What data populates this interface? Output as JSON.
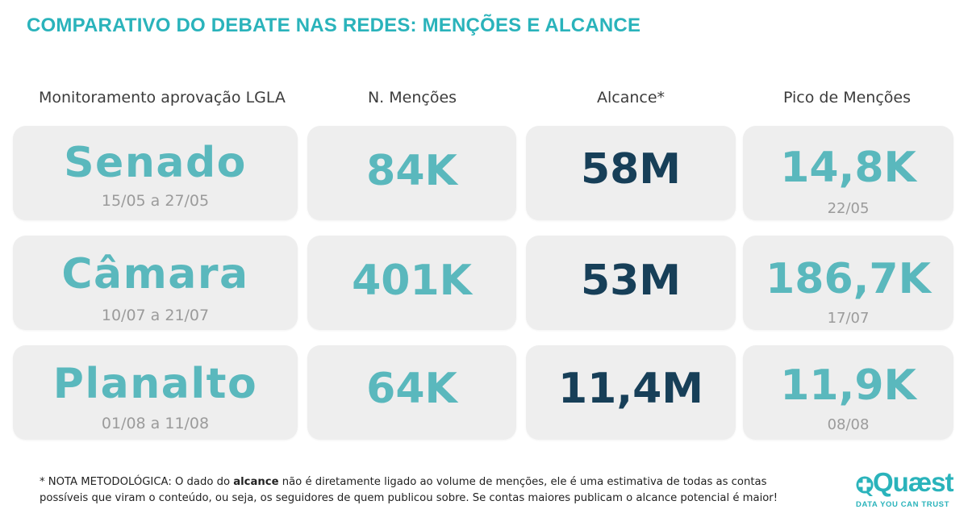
{
  "title": "COMPARATIVO DO DEBATE NAS REDES: MENÇÕES E ALCANCE",
  "columns": {
    "label": "Monitoramento aprovação LGLA",
    "mentions": "N. Menções",
    "reach": "Alcance*",
    "peak": "Pico de Menções"
  },
  "rows": [
    {
      "name": "Senado",
      "period": "15/05 a 27/05",
      "mentions": "84K",
      "reach": "58M",
      "peak": "14,8K",
      "peak_date": "22/05"
    },
    {
      "name": "Câmara",
      "period": "10/07 a 21/07",
      "mentions": "401K",
      "reach": "53M",
      "peak": "186,7K",
      "peak_date": "17/07"
    },
    {
      "name": "Planalto",
      "period": "01/08 a 11/08",
      "mentions": "64K",
      "reach": "11,4M",
      "peak": "11,9K",
      "peak_date": "08/08"
    }
  ],
  "note": {
    "prefix": "* NOTA METODOLÓGICA: O dado do ",
    "bold": "alcance",
    "suffix": " não é diretamente ligado ao volume de menções, ele é uma estimativa de todas as contas possíveis que viram o conteúdo, ou seja, os seguidores de quem publicou sobre. Se contas maiores publicam o alcance potencial é maior!"
  },
  "logo": {
    "name": "Quæst",
    "tagline": "DATA YOU CAN TRUST",
    "icon": "quaest-q-icon"
  },
  "colors": {
    "accent": "#2ab3bb",
    "value_teal": "#5ab8bd",
    "value_navy": "#173f58",
    "card_bg": "#eeeeee"
  }
}
